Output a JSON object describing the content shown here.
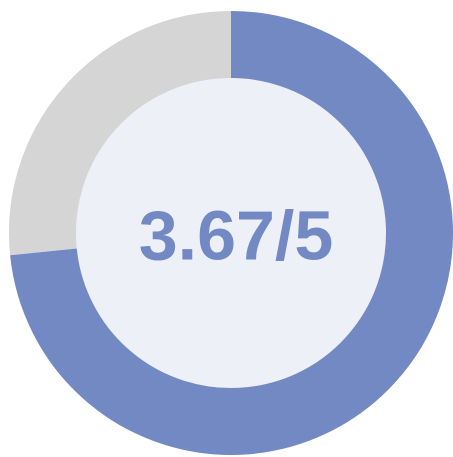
{
  "chart_data": {
    "type": "gauge",
    "values": [
      3.67
    ],
    "value_labels": [
      "3.67/5"
    ],
    "max": 5,
    "color": "#7389c4",
    "track_color": "#d5d5d6",
    "center_color": "#eef0f8"
  }
}
